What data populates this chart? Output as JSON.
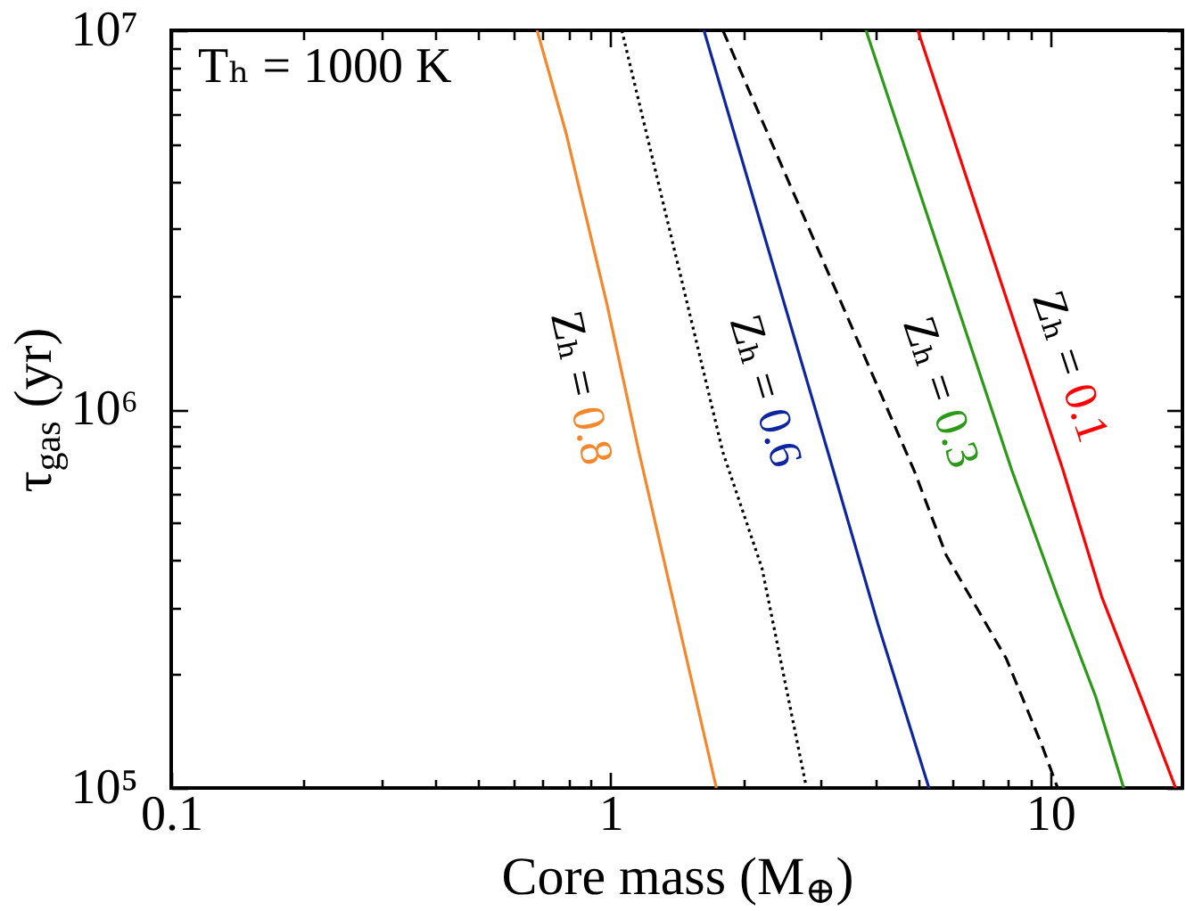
{
  "chart_data": {
    "type": "line",
    "xlabel": "Core mass (M$_{⊕}$)",
    "ylabel": "τ$_{gas}$ (yr)",
    "annotations": [
      "Tₕ = 1000 K"
    ],
    "log": "xy",
    "xlim": [
      0.1,
      20
    ],
    "ylim": [
      100000,
      10000000
    ],
    "xticks": [
      0.1,
      {
        "value": 0.2,
        "label": null
      },
      {
        "value": 0.3,
        "label": null
      },
      {
        "value": 0.4,
        "label": null
      },
      {
        "value": 0.5,
        "label": null
      },
      {
        "value": 0.6,
        "label": null
      },
      {
        "value": 0.7,
        "label": null
      },
      {
        "value": 0.8,
        "label": null
      },
      {
        "value": 0.9,
        "label": null
      },
      1,
      {
        "value": 2,
        "label": null
      },
      {
        "value": 3,
        "label": null
      },
      {
        "value": 4,
        "label": null
      },
      {
        "value": 5,
        "label": null
      },
      {
        "value": 6,
        "label": null
      },
      {
        "value": 7,
        "label": null
      },
      {
        "value": 8,
        "label": null
      },
      {
        "value": 9,
        "label": null
      },
      10
    ],
    "yticks": [
      {
        "value": 100000,
        "label": "10⁵"
      },
      {
        "value": 200000,
        "label": null
      },
      {
        "value": 300000,
        "label": null
      },
      {
        "value": 400000,
        "label": null
      },
      {
        "value": 500000,
        "label": null
      },
      {
        "value": 600000,
        "label": null
      },
      {
        "value": 700000,
        "label": null
      },
      {
        "value": 800000,
        "label": null
      },
      {
        "value": 900000,
        "label": null
      },
      {
        "value": 1000000,
        "label": "10⁶"
      },
      {
        "value": 2000000,
        "label": null
      },
      {
        "value": 3000000,
        "label": null
      },
      {
        "value": 4000000,
        "label": null
      },
      {
        "value": 5000000,
        "label": null
      },
      {
        "value": 6000000,
        "label": null
      },
      {
        "value": 7000000,
        "label": null
      },
      {
        "value": 8000000,
        "label": null
      },
      {
        "value": 9000000,
        "label": null
      },
      {
        "value": 10000000,
        "label": "10⁷"
      }
    ],
    "series": [
      {
        "name": "Zₕ = 0.8",
        "color": "#f5862a",
        "x": [
          0.68,
          0.79,
          0.98,
          1.16,
          1.74
        ],
        "values": [
          10000000,
          5400000,
          1900000,
          770000,
          100000
        ]
      },
      {
        "color": "#000000",
        "line_style": "dotted",
        "x": [
          1.06,
          1.8,
          2.21,
          2.79
        ],
        "values": [
          10000000,
          770000,
          380000,
          100000
        ]
      },
      {
        "name": "Zₕ = 0.6",
        "color": "#0d25a0",
        "x": [
          1.63,
          3.21,
          4.06,
          5.3
        ],
        "values": [
          10000000,
          690000,
          270000,
          100000
        ]
      },
      {
        "color": "#000000",
        "line_style": "dashed",
        "x": [
          1.8,
          4.9,
          5.81,
          7.94,
          9.57,
          10.4
        ],
        "values": [
          10000000,
          690000,
          410000,
          220000,
          130000,
          100000
        ]
      },
      {
        "name": "Zₕ = 0.3",
        "color": "#2a9a16",
        "x": [
          3.81,
          8.18,
          10.4,
          12.7,
          14.7
        ],
        "values": [
          10000000,
          690000,
          320000,
          174000,
          100000
        ]
      },
      {
        "name": "Zₕ = 0.1",
        "color": "#ff0000",
        "x": [
          5.0,
          10.7,
          13.1,
          16.3,
          19.3
        ],
        "values": [
          10000000,
          690000,
          320000,
          167000,
          100000
        ]
      }
    ]
  }
}
